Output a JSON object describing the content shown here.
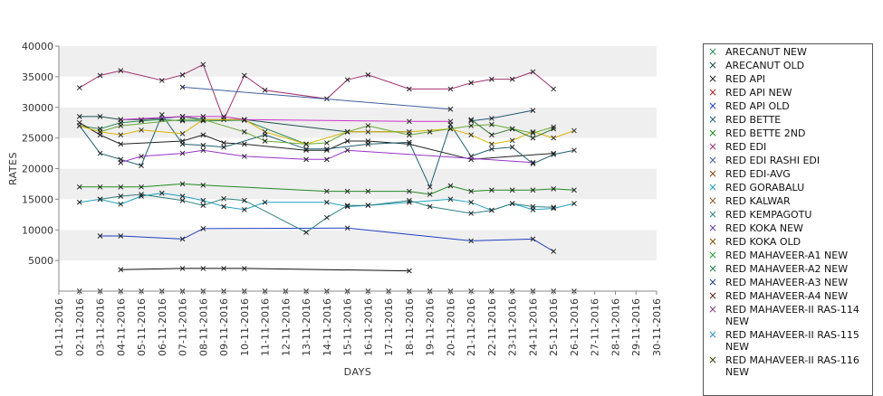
{
  "chart_data": {
    "type": "line",
    "title": "",
    "xlabel": "DAYS",
    "ylabel": "RATES",
    "ylim": [
      0,
      40000
    ],
    "yticks": [
      5000,
      10000,
      15000,
      20000,
      25000,
      30000,
      35000,
      40000
    ],
    "grid": "alternating horizontal bands",
    "legend_placement": "right",
    "categories": [
      "01-11-2016",
      "02-11-2016",
      "03-11-2016",
      "04-11-2016",
      "05-11-2016",
      "06-11-2016",
      "07-11-2016",
      "08-11-2016",
      "09-11-2016",
      "10-11-2016",
      "11-11-2016",
      "12-11-2016",
      "13-11-2016",
      "14-11-2016",
      "15-11-2016",
      "16-11-2016",
      "17-11-2016",
      "18-11-2016",
      "19-11-2016",
      "20-11-2016",
      "21-11-2016",
      "22-11-2016",
      "23-11-2016",
      "24-11-2016",
      "25-11-2016",
      "26-11-2016",
      "27-11-2016",
      "28-11-2016",
      "29-11-2016",
      "30-11-2016"
    ],
    "series": [
      {
        "name": "ARECANUT NEW",
        "color": "#2e8b57",
        "values": [
          null,
          27000,
          26500,
          27500,
          27800,
          28000,
          27800,
          27800,
          null,
          27900,
          null,
          null,
          24000,
          null,
          null,
          null,
          null,
          null,
          null,
          null,
          null,
          null,
          null,
          null,
          null,
          null,
          null,
          null,
          null,
          null
        ]
      },
      {
        "name": "ARECANUT OLD",
        "color": "#1f4f4f",
        "values": [
          null,
          28500,
          28500,
          28000,
          28000,
          28200,
          28500,
          28000,
          null,
          28000,
          null,
          null,
          null,
          null,
          26000,
          null,
          null,
          26000,
          null,
          null,
          null,
          null,
          null,
          null,
          null,
          null,
          null,
          null,
          null,
          null
        ]
      },
      {
        "name": "RED API",
        "color": "#222222",
        "values": [
          null,
          27500,
          25500,
          24000,
          null,
          null,
          24500,
          25500,
          24200,
          24000,
          null,
          null,
          23000,
          23000,
          24500,
          24500,
          null,
          24000,
          null,
          null,
          21500,
          null,
          null,
          null,
          22500,
          null,
          null,
          null,
          null,
          null
        ]
      },
      {
        "name": "RED API NEW",
        "color": "#b22222",
        "values": [
          null,
          null,
          null,
          null,
          null,
          null,
          null,
          null,
          null,
          null,
          null,
          null,
          null,
          null,
          null,
          null,
          null,
          null,
          null,
          null,
          null,
          null,
          null,
          null,
          null,
          null,
          null,
          null,
          null,
          null
        ]
      },
      {
        "name": "RED API OLD",
        "color": "#1f3fbf",
        "values": [
          null,
          null,
          9000,
          9000,
          null,
          null,
          8500,
          10200,
          null,
          null,
          null,
          null,
          null,
          null,
          10300,
          null,
          null,
          null,
          null,
          null,
          8200,
          null,
          null,
          8500,
          6500,
          null,
          null,
          null,
          null,
          null
        ]
      },
      {
        "name": "RED BETTE",
        "color": "#1f5f6f",
        "values": [
          null,
          27000,
          22500,
          21500,
          20500,
          28800,
          24000,
          23800,
          23500,
          null,
          25500,
          null,
          23200,
          23200,
          null,
          24000,
          null,
          24300,
          17000,
          27200,
          22000,
          23200,
          23500,
          20800,
          22300,
          23000,
          null,
          null,
          null,
          null
        ]
      },
      {
        "name": "RED BETTE 2ND",
        "color": "#228b22",
        "values": [
          null,
          17000,
          17000,
          17000,
          17000,
          null,
          17500,
          17300,
          null,
          null,
          null,
          null,
          null,
          16300,
          16300,
          16300,
          null,
          16300,
          15800,
          17200,
          16300,
          16500,
          16500,
          16500,
          16700,
          16500,
          null,
          null,
          null,
          null
        ]
      },
      {
        "name": "RED EDI",
        "color": "#a0306f",
        "values": [
          null,
          33200,
          35200,
          36000,
          null,
          34400,
          35300,
          37000,
          28000,
          35200,
          32800,
          null,
          null,
          31400,
          34500,
          35300,
          null,
          33000,
          null,
          33000,
          34000,
          34600,
          34600,
          35800,
          33000,
          null,
          null,
          null,
          null,
          null
        ]
      },
      {
        "name": "RED EDI RASHI EDI",
        "color": "#3f5f9f",
        "values": [
          null,
          null,
          null,
          null,
          null,
          null,
          33300,
          null,
          null,
          null,
          null,
          null,
          null,
          null,
          null,
          null,
          null,
          null,
          null,
          29700,
          null,
          null,
          null,
          null,
          null,
          null,
          null,
          null,
          null,
          null
        ]
      },
      {
        "name": "RED EDI-AVG",
        "color": "#8b4513",
        "values": [
          null,
          0,
          0,
          0,
          0,
          0,
          0,
          0,
          0,
          0,
          0,
          0,
          0,
          0,
          0,
          0,
          0,
          0,
          0,
          0,
          0,
          0,
          0,
          0,
          0,
          0,
          null,
          null,
          null,
          null
        ]
      },
      {
        "name": "RED GORABALU",
        "color": "#20a0c0",
        "values": [
          null,
          14500,
          15000,
          14200,
          15500,
          16000,
          15500,
          14800,
          13800,
          13300,
          14500,
          null,
          null,
          14500,
          13800,
          14000,
          null,
          14500,
          null,
          15000,
          14500,
          13200,
          14300,
          13300,
          13500,
          14300,
          null,
          null,
          null,
          null
        ]
      },
      {
        "name": "RED KALWAR",
        "color": "#8b5a2b",
        "values": [
          null,
          null,
          null,
          null,
          null,
          null,
          null,
          null,
          null,
          null,
          null,
          null,
          null,
          null,
          null,
          null,
          null,
          null,
          null,
          null,
          null,
          null,
          null,
          null,
          null,
          null,
          null,
          null,
          null,
          null
        ]
      },
      {
        "name": "RED KEMPAGOTU",
        "color": "#2f7f7f",
        "values": [
          null,
          null,
          15000,
          15500,
          15800,
          null,
          14800,
          14000,
          15100,
          14800,
          null,
          null,
          9600,
          12000,
          14000,
          14000,
          null,
          14800,
          13800,
          null,
          12700,
          13200,
          14300,
          13800,
          13700,
          null,
          null,
          null,
          null,
          null
        ]
      },
      {
        "name": "RED KOKA NEW",
        "color": "#6a3d9a",
        "values": [
          null,
          null,
          null,
          null,
          null,
          null,
          null,
          null,
          null,
          null,
          null,
          null,
          null,
          null,
          null,
          null,
          null,
          null,
          null,
          null,
          null,
          null,
          null,
          null,
          null,
          null,
          null,
          null,
          null,
          null
        ]
      },
      {
        "name": "RED KOKA OLD",
        "color": "#7f4f00",
        "values": [
          null,
          null,
          null,
          null,
          null,
          null,
          null,
          null,
          null,
          null,
          null,
          null,
          null,
          null,
          null,
          null,
          null,
          null,
          null,
          null,
          null,
          null,
          null,
          null,
          null,
          null,
          null,
          null,
          null,
          null
        ]
      },
      {
        "name": "RED MAHAVEER-A1 NEW",
        "color": "#2ca02c",
        "values": [
          null,
          null,
          null,
          null,
          null,
          null,
          null,
          null,
          null,
          null,
          null,
          null,
          null,
          null,
          null,
          null,
          null,
          null,
          null,
          null,
          null,
          null,
          null,
          null,
          null,
          null,
          null,
          null,
          null,
          null
        ]
      },
      {
        "name": "RED MAHAVEER-A2 NEW",
        "color": "#1f7f4f",
        "values": [
          null,
          null,
          null,
          null,
          null,
          null,
          null,
          null,
          null,
          null,
          null,
          null,
          null,
          null,
          null,
          null,
          null,
          null,
          null,
          null,
          null,
          null,
          null,
          null,
          null,
          null,
          null,
          null,
          null,
          null
        ]
      },
      {
        "name": "RED MAHAVEER-A3 NEW",
        "color": "#1f3f7f",
        "values": [
          null,
          null,
          null,
          null,
          null,
          null,
          null,
          null,
          null,
          null,
          null,
          null,
          null,
          null,
          null,
          null,
          null,
          null,
          null,
          null,
          null,
          null,
          null,
          null,
          null,
          null,
          null,
          null,
          null,
          null
        ]
      },
      {
        "name": "RED MAHAVEER-A4 NEW",
        "color": "#5f1f1f",
        "values": [
          null,
          null,
          null,
          null,
          null,
          null,
          null,
          null,
          null,
          null,
          null,
          null,
          null,
          null,
          null,
          null,
          null,
          null,
          null,
          null,
          null,
          null,
          null,
          null,
          null,
          null,
          null,
          null,
          null,
          null
        ]
      },
      {
        "name": "RED MAHAVEER-II RAS-114 NEW",
        "color": "#7f3f7f",
        "values": [
          null,
          null,
          null,
          null,
          null,
          null,
          null,
          null,
          null,
          null,
          null,
          null,
          null,
          null,
          null,
          null,
          null,
          null,
          null,
          null,
          null,
          null,
          null,
          null,
          null,
          null,
          null,
          null,
          null,
          null
        ]
      },
      {
        "name": "RED MAHAVEER-II RAS-115 NEW",
        "color": "#2f8fbf",
        "values": [
          null,
          null,
          null,
          null,
          null,
          null,
          null,
          null,
          null,
          null,
          null,
          null,
          null,
          null,
          null,
          null,
          null,
          null,
          null,
          null,
          null,
          null,
          null,
          null,
          null,
          null,
          null,
          null,
          null,
          null
        ]
      },
      {
        "name": "RED MAHAVEER-II RAS-116 NEW",
        "color": "#3f3f00",
        "values": [
          null,
          null,
          null,
          null,
          null,
          null,
          null,
          null,
          null,
          null,
          null,
          null,
          null,
          null,
          null,
          null,
          null,
          null,
          null,
          null,
          null,
          null,
          null,
          null,
          null,
          null,
          null,
          null,
          null,
          null
        ]
      },
      {
        "name": "",
        "color": "#dcb400",
        "values": [
          null,
          27000,
          26000,
          25500,
          26300,
          null,
          25700,
          28000,
          null,
          28000,
          26000,
          null,
          24000,
          null,
          26000,
          26000,
          null,
          26000,
          null,
          26500,
          25500,
          24000,
          24600,
          26000,
          25000,
          26200,
          null,
          null,
          null,
          null
        ]
      },
      {
        "name": "",
        "color": "#9932cc",
        "values": [
          null,
          null,
          null,
          21000,
          22000,
          null,
          22500,
          23000,
          null,
          22000,
          null,
          null,
          21500,
          21500,
          23000,
          null,
          null,
          null,
          null,
          null,
          null,
          null,
          null,
          21000,
          null,
          null,
          null,
          null,
          null,
          null
        ]
      },
      {
        "name": "",
        "color": "#111111",
        "values": [
          null,
          null,
          null,
          3500,
          null,
          null,
          3700,
          3700,
          3700,
          3700,
          null,
          null,
          null,
          null,
          null,
          null,
          null,
          3300,
          null,
          null,
          null,
          null,
          null,
          null,
          null,
          null,
          null,
          null,
          null,
          null
        ]
      },
      {
        "name": "",
        "color": "#cc33cc",
        "values": [
          null,
          null,
          null,
          28000,
          null,
          null,
          28500,
          28500,
          28500,
          28000,
          null,
          null,
          null,
          null,
          null,
          null,
          null,
          27700,
          null,
          27700,
          null,
          null,
          null,
          null,
          null,
          null,
          null,
          null,
          null,
          null
        ]
      },
      {
        "name": "",
        "color": "#66aa33",
        "values": [
          null,
          null,
          26000,
          27000,
          null,
          null,
          28000,
          28000,
          null,
          26000,
          24500,
          null,
          24000,
          24200,
          26000,
          27000,
          null,
          25500,
          26000,
          26500,
          27000,
          27200,
          26500,
          25800,
          26800,
          null,
          null,
          null,
          null,
          null
        ]
      },
      {
        "name": "",
        "color": "#225577",
        "values": [
          null,
          null,
          null,
          null,
          null,
          null,
          null,
          null,
          null,
          null,
          null,
          null,
          null,
          null,
          null,
          null,
          null,
          null,
          null,
          null,
          27800,
          28200,
          null,
          29500,
          null,
          null,
          null,
          null,
          null,
          null
        ]
      },
      {
        "name": "",
        "color": "#3a7a3a",
        "values": [
          null,
          null,
          null,
          null,
          null,
          null,
          null,
          null,
          null,
          null,
          null,
          null,
          null,
          null,
          null,
          null,
          null,
          null,
          null,
          null,
          28000,
          25500,
          26500,
          25000,
          26500,
          null,
          null,
          null,
          null,
          null
        ]
      }
    ]
  }
}
